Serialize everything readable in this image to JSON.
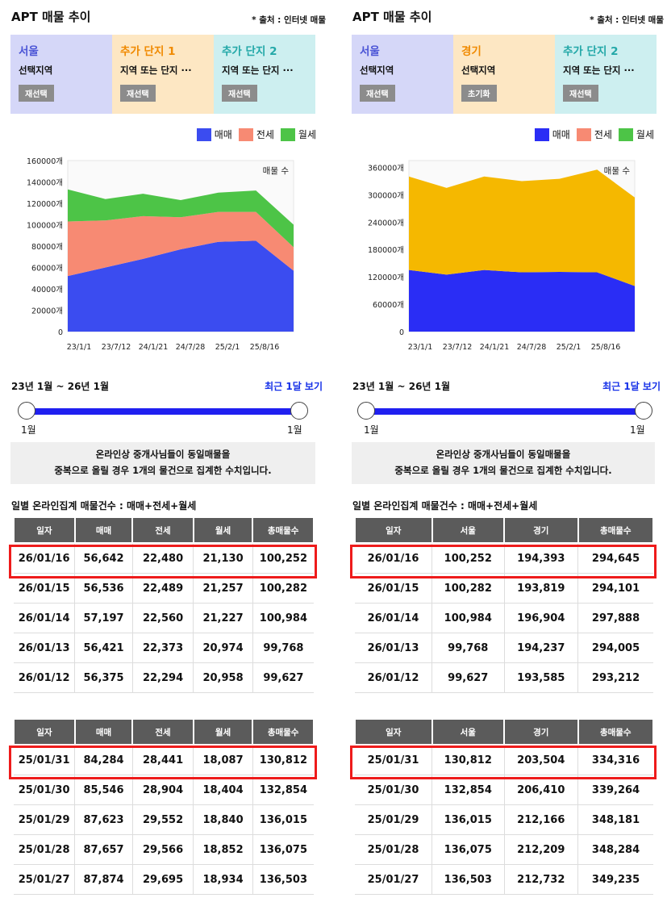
{
  "colors": {
    "sale": "#3b4cf0",
    "jeonse": "#f78a73",
    "wolse": "#4dc447",
    "gyeonggi": "#f5b800",
    "seoul_blue": "#2a2df5",
    "highlight": "#ee1b1b"
  },
  "left": {
    "title": "APT 매물 추이",
    "source": "* 출처 : 인터넷 매물",
    "regions": [
      {
        "name": "서울",
        "sub": "선택지역",
        "btn": "재선택",
        "color": "#4b55d6",
        "bg": "#d5d7f8"
      },
      {
        "name": "추가 단지 1",
        "sub": "지역 또는 단지 ···",
        "btn": "재선택",
        "color": "#f08a00",
        "bg": "#fde7c3"
      },
      {
        "name": "추가 단지 2",
        "sub": "지역 또는 단지 ···",
        "btn": "재선택",
        "color": "#23a8a8",
        "bg": "#cdeff0"
      }
    ],
    "legend": [
      "매매",
      "전세",
      "월세"
    ],
    "range": "23년 1월 ~ 26년 1월",
    "recent": "최근 1달 보기",
    "slider_left": "1월",
    "slider_right": "1월",
    "note1": "온라인상 중개사님들이 동일매물을",
    "note2": "중복으로 올릴 경우 1개의 물건으로 집계한 수치입니다.",
    "table_caption": "일별 온라인집계 매물건수 : 매매+전세+월세",
    "headers": [
      "일자",
      "매매",
      "전세",
      "월세",
      "총매물수"
    ],
    "table1": [
      [
        "26/01/16",
        "56,642",
        "22,480",
        "21,130",
        "100,252"
      ],
      [
        "26/01/15",
        "56,536",
        "22,489",
        "21,257",
        "100,282"
      ],
      [
        "26/01/14",
        "57,197",
        "22,560",
        "21,227",
        "100,984"
      ],
      [
        "26/01/13",
        "56,421",
        "22,373",
        "20,974",
        "99,768"
      ],
      [
        "26/01/12",
        "56,375",
        "22,294",
        "20,958",
        "99,627"
      ]
    ],
    "table2": [
      [
        "25/01/31",
        "84,284",
        "28,441",
        "18,087",
        "130,812"
      ],
      [
        "25/01/30",
        "85,546",
        "28,904",
        "18,404",
        "132,854"
      ],
      [
        "25/01/29",
        "87,623",
        "29,552",
        "18,840",
        "136,015"
      ],
      [
        "25/01/28",
        "87,657",
        "29,566",
        "18,852",
        "136,075"
      ],
      [
        "25/01/27",
        "87,874",
        "29,695",
        "18,934",
        "136,503"
      ]
    ]
  },
  "right": {
    "title": "APT 매물 추이",
    "source": "* 출처 : 인터넷 매물",
    "regions": [
      {
        "name": "서울",
        "sub": "선택지역",
        "btn": "재선택",
        "color": "#4b55d6",
        "bg": "#d5d7f8"
      },
      {
        "name": "경기",
        "sub": "선택지역",
        "btn": "초기화",
        "color": "#f08a00",
        "bg": "#fde7c3"
      },
      {
        "name": "추가 단지 2",
        "sub": "지역 또는 단지 ···",
        "btn": "재선택",
        "color": "#23a8a8",
        "bg": "#cdeff0"
      }
    ],
    "legend": [
      "매매",
      "전세",
      "월세"
    ],
    "range": "23년 1월 ~ 26년 1월",
    "recent": "최근 1달 보기",
    "slider_left": "1월",
    "slider_right": "1월",
    "note1": "온라인상 중개사님들이 동일매물을",
    "note2": "중복으로 올릴 경우 1개의 물건으로 집계한 수치입니다.",
    "table_caption": "일별 온라인집계 매물건수 : 매매+전세+월세",
    "headers": [
      "일자",
      "서울",
      "경기",
      "총매물수"
    ],
    "table1": [
      [
        "26/01/16",
        "100,252",
        "194,393",
        "294,645"
      ],
      [
        "26/01/15",
        "100,282",
        "193,819",
        "294,101"
      ],
      [
        "26/01/14",
        "100,984",
        "196,904",
        "297,888"
      ],
      [
        "26/01/13",
        "99,768",
        "194,237",
        "294,005"
      ],
      [
        "26/01/12",
        "99,627",
        "193,585",
        "293,212"
      ]
    ],
    "table2": [
      [
        "25/01/31",
        "130,812",
        "203,504",
        "334,316"
      ],
      [
        "25/01/30",
        "132,854",
        "206,410",
        "339,264"
      ],
      [
        "25/01/29",
        "136,015",
        "212,166",
        "348,181"
      ],
      [
        "25/01/28",
        "136,075",
        "212,209",
        "348,284"
      ],
      [
        "25/01/27",
        "136,503",
        "212,732",
        "349,235"
      ]
    ]
  },
  "chart_data": [
    {
      "type": "area",
      "stacked": true,
      "x": [
        "23/1/1",
        "23/7/12",
        "24/1/21",
        "24/7/28",
        "25/2/1",
        "25/8/16",
        "26/1/16"
      ],
      "xticks": [
        "23/1/1",
        "23/7/12",
        "24/1/21",
        "24/7/28",
        "25/2/1",
        "25/8/16"
      ],
      "ylabel": "매물 수",
      "yticks": [
        "160000개",
        "140000개",
        "120000개",
        "100000개",
        "80000개",
        "60000개",
        "40000개",
        "20000개",
        "0"
      ],
      "ylim": [
        0,
        160000
      ],
      "series": [
        {
          "name": "매매",
          "values": [
            52000,
            60000,
            68000,
            77000,
            84000,
            85000,
            57000
          ]
        },
        {
          "name": "전세",
          "values": [
            51000,
            44000,
            40000,
            30000,
            28000,
            27000,
            22000
          ]
        },
        {
          "name": "월세",
          "values": [
            30000,
            20000,
            21000,
            16000,
            18000,
            20000,
            21000
          ]
        }
      ],
      "legend": "top-right"
    },
    {
      "type": "area",
      "stacked": true,
      "x": [
        "23/1/1",
        "23/7/12",
        "24/1/21",
        "24/7/28",
        "25/2/1",
        "25/8/16",
        "26/1/16"
      ],
      "xticks": [
        "23/1/1",
        "23/7/12",
        "24/1/21",
        "24/7/28",
        "25/2/1",
        "25/8/16"
      ],
      "ylabel": "매물 수",
      "yticks": [
        "360000개",
        "300000개",
        "240000개",
        "180000개",
        "120000개",
        "60000개",
        "0"
      ],
      "ylim": [
        0,
        375000
      ],
      "series": [
        {
          "name": "서울",
          "values": [
            135000,
            125000,
            135000,
            130000,
            131000,
            130000,
            100000
          ]
        },
        {
          "name": "경기",
          "values": [
            205000,
            190000,
            205000,
            200000,
            204000,
            225000,
            194000
          ]
        }
      ],
      "legend": "top-right"
    }
  ]
}
